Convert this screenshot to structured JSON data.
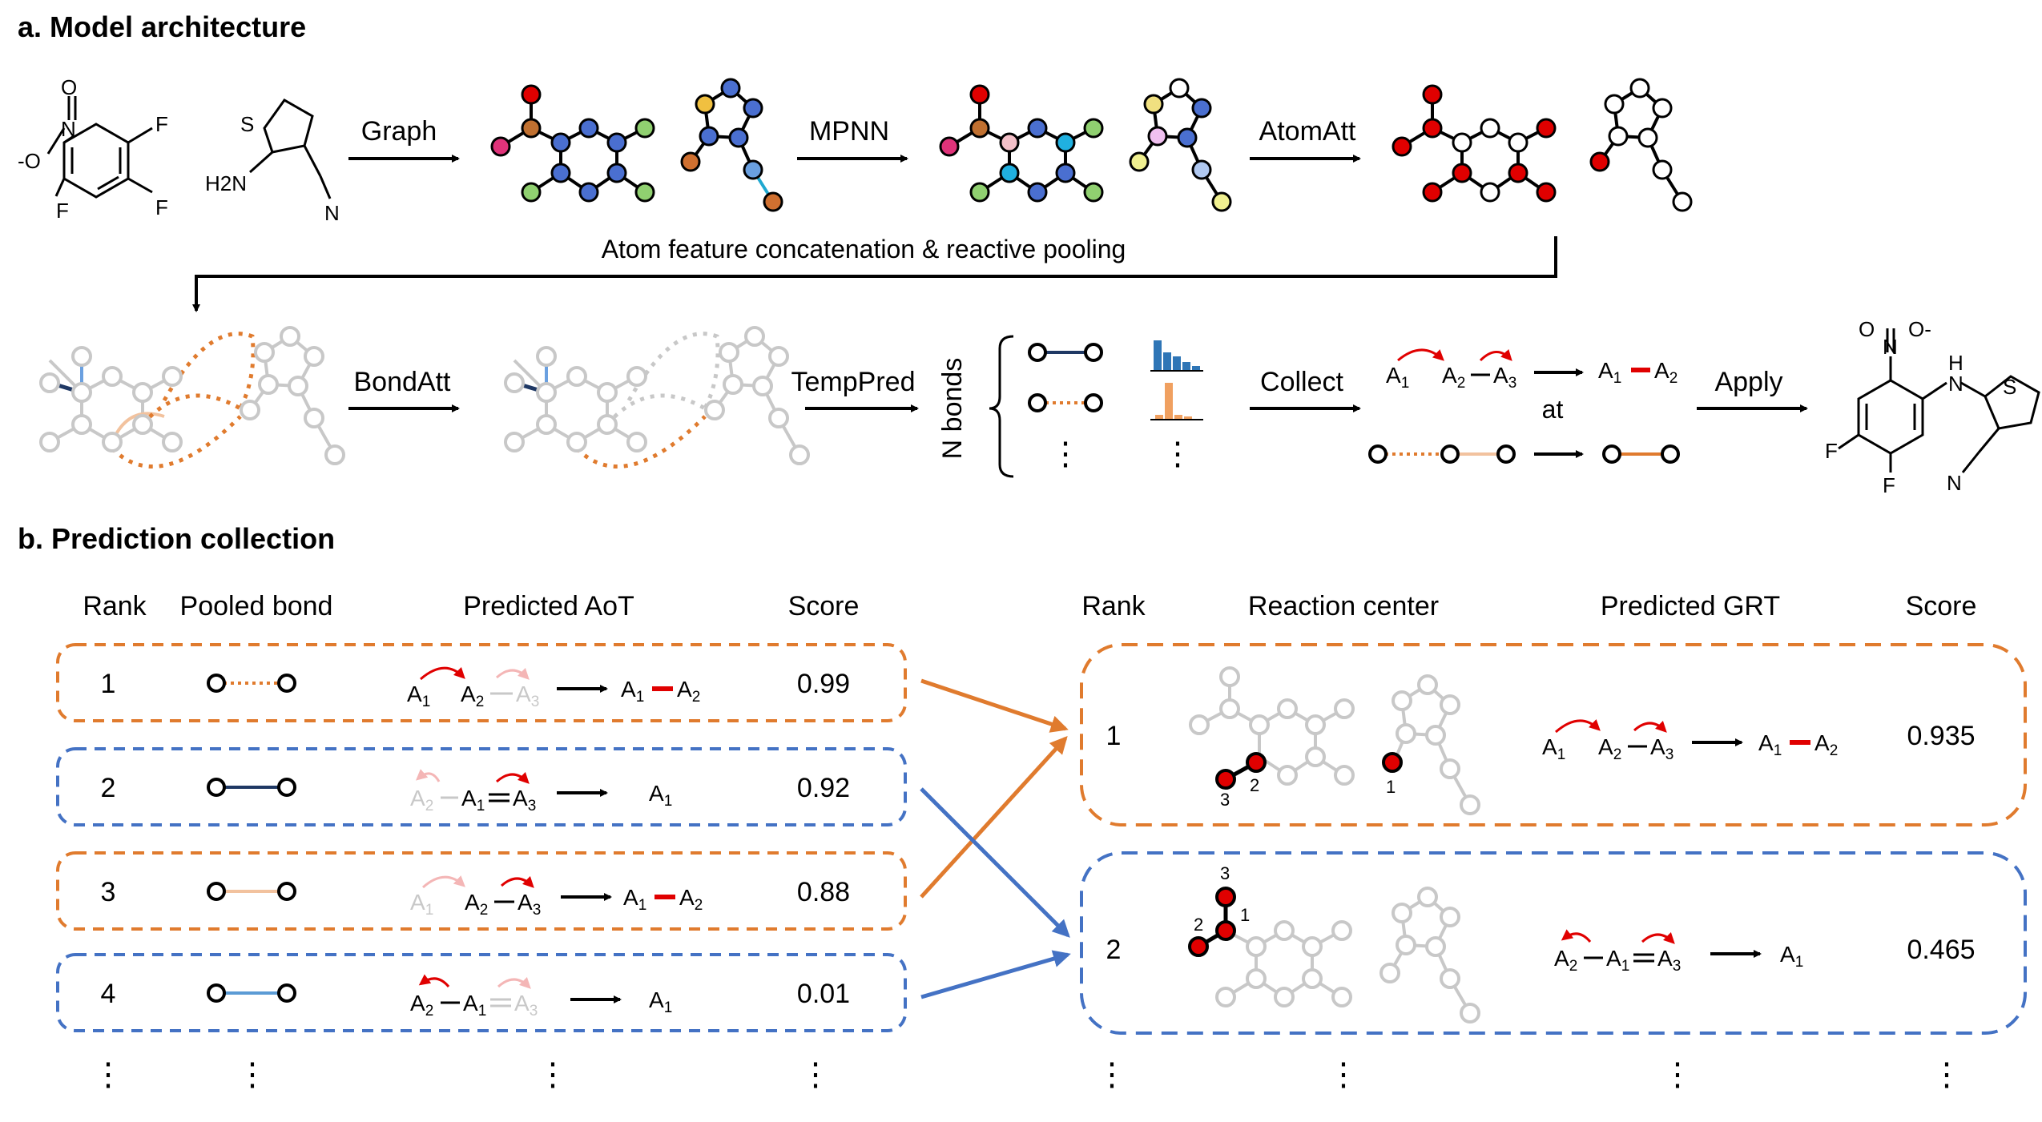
{
  "panel_a": {
    "title": "a. Model architecture",
    "steps": {
      "graph": "Graph",
      "mpnn": "MPNN",
      "atomatt": "AtomAtt",
      "bondatt": "BondAtt",
      "temppred": "TempPred",
      "collect": "Collect",
      "apply": "Apply",
      "at": "at"
    },
    "pooling_label": "Atom feature concatenation & reactive pooling",
    "n_bonds_label": "N bonds",
    "reactant1_atoms": {
      "o": "O",
      "n_plus": "N",
      "o_minus": "-O",
      "f": "F"
    },
    "reactant2_atoms": {
      "s": "S",
      "h2n": "H2N",
      "n": "N"
    },
    "product_atoms": {
      "o_top": "O",
      "o_minus": "O-",
      "n_plus": "N",
      "h": "H",
      "n_amine": "N",
      "s": "S",
      "f": "F",
      "n_nitrile": "N"
    },
    "aot": {
      "a1": "A",
      "a2": "A",
      "a3": "A",
      "s1": "1",
      "s2": "2",
      "s3": "3"
    },
    "ellipsis": "⋮"
  },
  "panel_b": {
    "title": "b. Prediction collection",
    "left_headers": {
      "rank": "Rank",
      "bond": "Pooled bond",
      "aot": "Predicted AoT",
      "score": "Score"
    },
    "right_headers": {
      "rank": "Rank",
      "center": "Reaction center",
      "grt": "Predicted GRT",
      "score": "Score"
    },
    "left_rows": [
      {
        "rank": "1",
        "score": "0.99",
        "color": "#e07b2e",
        "bond_style": "dotted-orange"
      },
      {
        "rank": "2",
        "score": "0.92",
        "color": "#4472c4",
        "bond_style": "solid-navy"
      },
      {
        "rank": "3",
        "score": "0.88",
        "color": "#e07b2e",
        "bond_style": "solid-peach"
      },
      {
        "rank": "4",
        "score": "0.01",
        "color": "#4472c4",
        "bond_style": "solid-blue"
      }
    ],
    "right_rows": [
      {
        "rank": "1",
        "score": "0.935",
        "color": "#e07b2e",
        "center_numbers": [
          "3",
          "2",
          "1"
        ]
      },
      {
        "rank": "2",
        "score": "0.465",
        "color": "#4472c4",
        "center_numbers": [
          "3",
          "2",
          "1"
        ]
      }
    ],
    "ellipsis": "⋮"
  },
  "colors": {
    "orange": "#e07b2e",
    "blue": "#4472c4",
    "red": "#e00000",
    "grey": "#c8c8c8",
    "navy": "#1f3864"
  }
}
